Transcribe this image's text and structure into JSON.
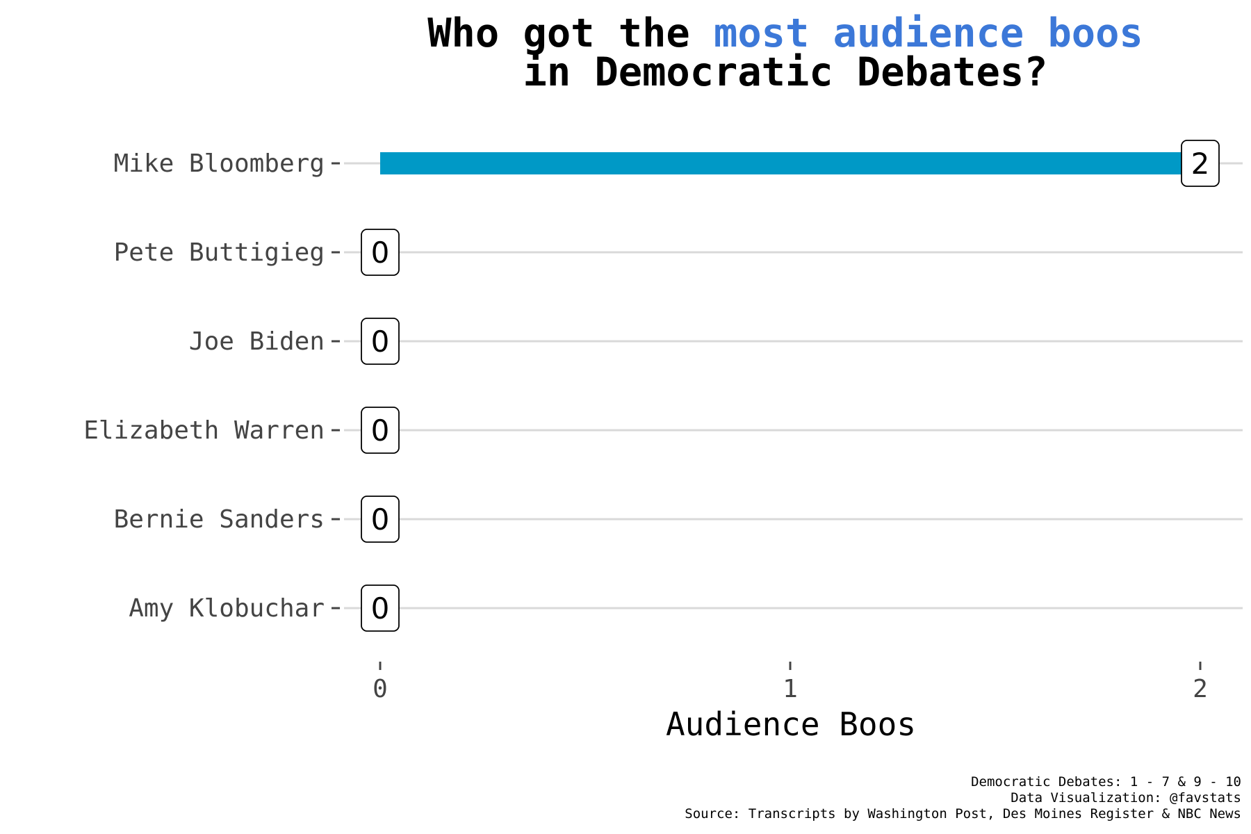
{
  "chart_data": {
    "type": "bar",
    "orientation": "horizontal",
    "title": {
      "line1_a": "Who got the ",
      "line1_b": "most audience boos",
      "line2": "in Democratic Debates?"
    },
    "categories": [
      "Mike Bloomberg",
      "Pete Buttigieg",
      "Joe Biden",
      "Elizabeth Warren",
      "Bernie Sanders",
      "Amy Klobuchar"
    ],
    "values": [
      2,
      0,
      0,
      0,
      0,
      0
    ],
    "xlabel": "Audience Boos",
    "ylabel": "",
    "xlim": [
      0,
      2
    ],
    "xticks": [
      "0",
      "1",
      "2"
    ],
    "grid": "horizontal",
    "legend": "none",
    "captions": [
      "Democratic Debates: 1 - 7 & 9 - 10",
      "Data Visualization: @favstats",
      "Source: Transcripts by Washington Post, Des Moines Register & NBC News"
    ]
  },
  "colors": {
    "bar": "#0099c6",
    "title_highlight": "#3c78d8",
    "title": "#000000",
    "grid": "#d9d9d9",
    "axis_text": "#444444"
  }
}
